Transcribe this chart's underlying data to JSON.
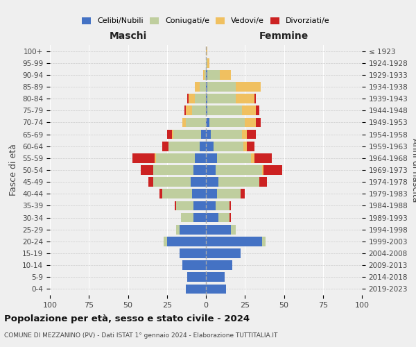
{
  "age_groups": [
    "100+",
    "95-99",
    "90-94",
    "85-89",
    "80-84",
    "75-79",
    "70-74",
    "65-69",
    "60-64",
    "55-59",
    "50-54",
    "45-49",
    "40-44",
    "35-39",
    "30-34",
    "25-29",
    "20-24",
    "15-19",
    "10-14",
    "5-9",
    "0-4"
  ],
  "birth_years": [
    "≤ 1923",
    "1924-1928",
    "1929-1933",
    "1934-1938",
    "1939-1943",
    "1944-1948",
    "1949-1953",
    "1954-1958",
    "1959-1963",
    "1964-1968",
    "1969-1973",
    "1974-1978",
    "1979-1983",
    "1984-1988",
    "1989-1993",
    "1994-1998",
    "1999-2003",
    "2004-2008",
    "2009-2013",
    "2014-2018",
    "2019-2023"
  ],
  "colors": {
    "celibi": "#4472C4",
    "coniugati": "#BFCE9E",
    "vedovi": "#F0C060",
    "divorziati": "#CC2222"
  },
  "maschi": {
    "celibi": [
      0,
      0,
      0,
      0,
      0,
      0,
      0,
      3,
      4,
      7,
      8,
      10,
      9,
      8,
      8,
      17,
      25,
      17,
      15,
      12,
      13
    ],
    "coniugati": [
      0,
      0,
      1,
      4,
      7,
      9,
      13,
      18,
      20,
      25,
      26,
      24,
      19,
      11,
      8,
      2,
      2,
      0,
      0,
      0,
      0
    ],
    "vedovi": [
      0,
      0,
      1,
      3,
      4,
      4,
      2,
      1,
      0,
      1,
      0,
      0,
      0,
      0,
      0,
      0,
      0,
      0,
      0,
      0,
      0
    ],
    "divorziati": [
      0,
      0,
      0,
      0,
      1,
      1,
      0,
      3,
      4,
      14,
      8,
      3,
      2,
      1,
      0,
      0,
      0,
      0,
      0,
      0,
      0
    ]
  },
  "femmine": {
    "celibi": [
      0,
      0,
      1,
      1,
      1,
      1,
      2,
      3,
      5,
      7,
      6,
      8,
      7,
      6,
      8,
      16,
      36,
      22,
      17,
      12,
      13
    ],
    "coniugati": [
      0,
      1,
      8,
      18,
      18,
      22,
      23,
      20,
      19,
      22,
      30,
      26,
      15,
      9,
      7,
      3,
      2,
      0,
      0,
      0,
      0
    ],
    "vedovi": [
      1,
      1,
      7,
      16,
      12,
      9,
      7,
      3,
      2,
      2,
      1,
      0,
      0,
      0,
      0,
      0,
      0,
      0,
      0,
      0,
      0
    ],
    "divorziati": [
      0,
      0,
      0,
      0,
      1,
      2,
      3,
      6,
      5,
      11,
      12,
      5,
      3,
      1,
      1,
      0,
      0,
      0,
      0,
      0,
      0
    ]
  },
  "title": "Popolazione per età, sesso e stato civile - 2024",
  "subtitle": "COMUNE DI MEZZANINO (PV) - Dati ISTAT 1° gennaio 2024 - Elaborazione TUTTITALIA.IT",
  "xlabel_left": "Maschi",
  "xlabel_right": "Femmine",
  "ylabel_left": "Fasce di età",
  "ylabel_right": "Anni di nascita",
  "xlim": 100,
  "background_color": "#efefef",
  "legend_labels": [
    "Celibi/Nubili",
    "Coniugati/e",
    "Vedovi/e",
    "Divorziati/e"
  ]
}
